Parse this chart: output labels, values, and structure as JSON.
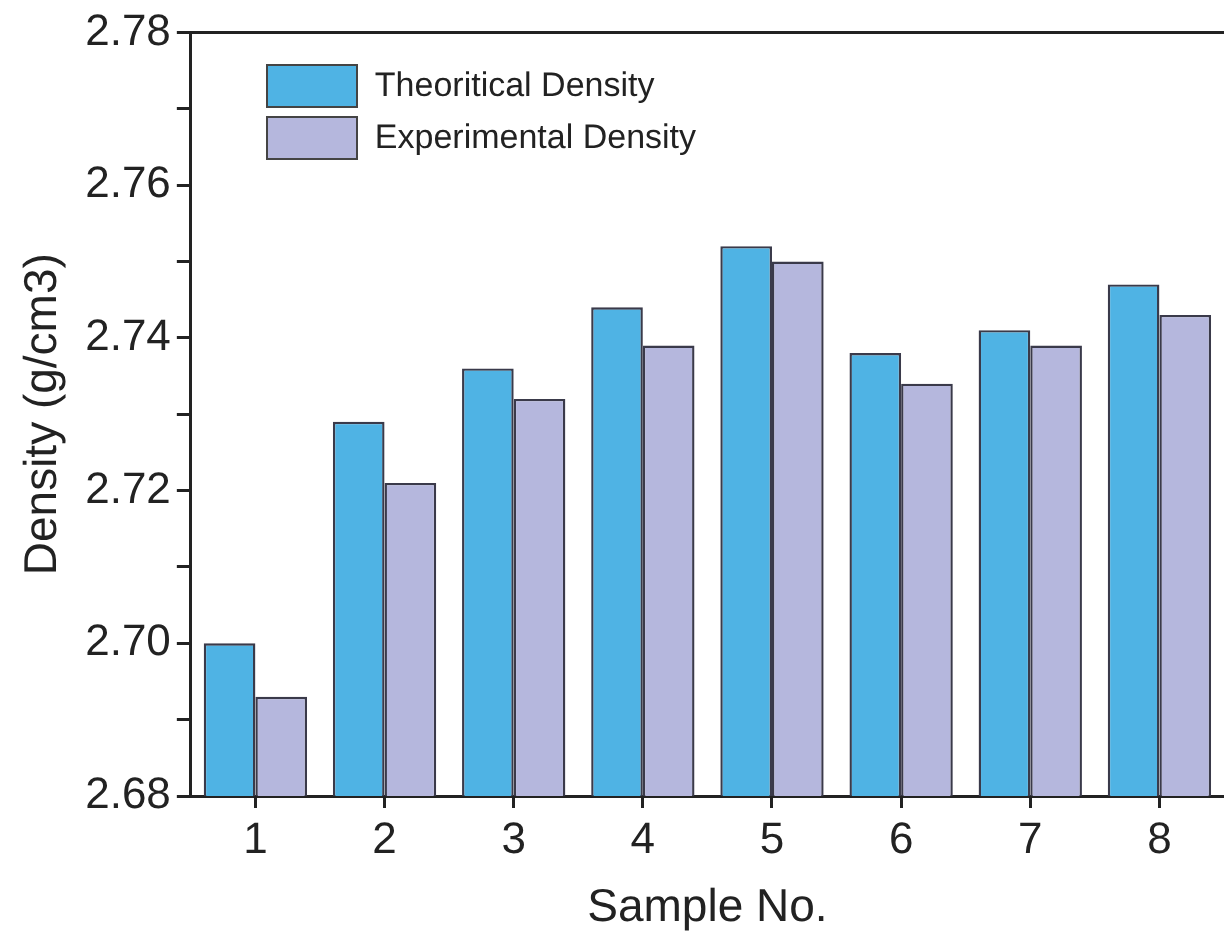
{
  "chart_data": {
    "type": "bar",
    "xlabel": "Sample No.",
    "ylabel": "Density (g/cm3)",
    "categories": [
      "1",
      "2",
      "3",
      "4",
      "5",
      "6",
      "7",
      "8"
    ],
    "series": [
      {
        "name": "Theoritical Density",
        "color": "#4fb3e4",
        "values": [
          2.7,
          2.729,
          2.736,
          2.744,
          2.752,
          2.738,
          2.741,
          2.747
        ]
      },
      {
        "name": "Experimental Density",
        "color": "#b5b7dd",
        "values": [
          2.693,
          2.721,
          2.732,
          2.739,
          2.75,
          2.734,
          2.739,
          2.743
        ]
      }
    ],
    "ylim": [
      2.68,
      2.78
    ],
    "yticks": [
      2.68,
      {
        "value": 2.69,
        "label": null
      },
      {
        "value": 2.7,
        "label": "2.70"
      },
      {
        "value": 2.71,
        "label": null
      },
      2.72,
      {
        "value": 2.73,
        "label": null
      },
      2.74,
      {
        "value": 2.75,
        "label": null
      },
      2.76,
      {
        "value": 2.77,
        "label": null
      },
      2.78
    ],
    "grid": false,
    "legend": "top left"
  }
}
